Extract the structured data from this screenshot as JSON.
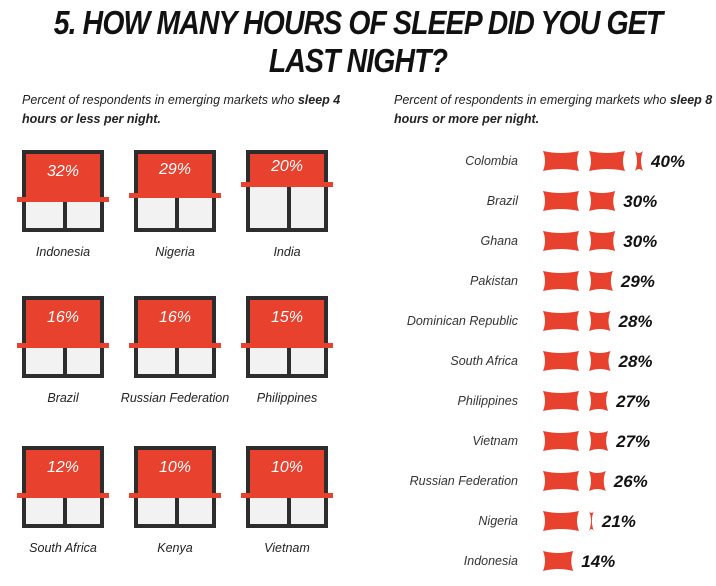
{
  "title": "5. HOW MANY HOURS OF SLEEP DID YOU GET LAST NIGHT?",
  "left_subtitle": {
    "pre": "Percent of respondents in emerging markets who ",
    "bold": "sleep 4 hours or less per night."
  },
  "right_subtitle": {
    "pre": "Percent of respondents in emerging markets who ",
    "bold": "sleep 8 hours or more per night."
  },
  "colors": {
    "accent": "#e8412e",
    "frame": "#2d2d2d",
    "pane": "#f2f2f2"
  },
  "chart_data": [
    {
      "type": "table",
      "title": "",
      "subtitle": "Percent of respondents in emerging markets who sleep 4 hours or less per night.",
      "unit": "%",
      "items": [
        {
          "label": "Indonesia",
          "value": 32,
          "text": "32%"
        },
        {
          "label": "Nigeria",
          "value": 29,
          "text": "29%"
        },
        {
          "label": "India",
          "value": 20,
          "text": "20%"
        },
        {
          "label": "Brazil",
          "value": 16,
          "text": "16%"
        },
        {
          "label": "Russian Federation",
          "value": 16,
          "text": "16%"
        },
        {
          "label": "Philippines",
          "value": 15,
          "text": "15%"
        },
        {
          "label": "South Africa",
          "value": 12,
          "text": "12%"
        },
        {
          "label": "Kenya",
          "value": 10,
          "text": "10%"
        },
        {
          "label": "Vietnam",
          "value": 10,
          "text": "10%"
        }
      ]
    },
    {
      "type": "bar",
      "orientation": "horizontal",
      "title": "",
      "subtitle": "Percent of respondents in emerging markets who sleep 8 hours or more per night.",
      "unit": "%",
      "categories": [
        "Colombia",
        "Brazil",
        "Ghana",
        "Pakistan",
        "Dominican Republic",
        "South Africa",
        "Philippines",
        "Vietnam",
        "Russian Federation",
        "Nigeria",
        "Indonesia"
      ],
      "values": [
        40,
        30,
        30,
        29,
        28,
        28,
        27,
        27,
        26,
        21,
        14
      ],
      "value_labels": [
        "40%",
        "30%",
        "30%",
        "29%",
        "28%",
        "28%",
        "27%",
        "27%",
        "26%",
        "21%",
        "14%"
      ],
      "xlim": [
        0,
        40
      ],
      "grid": false
    }
  ]
}
